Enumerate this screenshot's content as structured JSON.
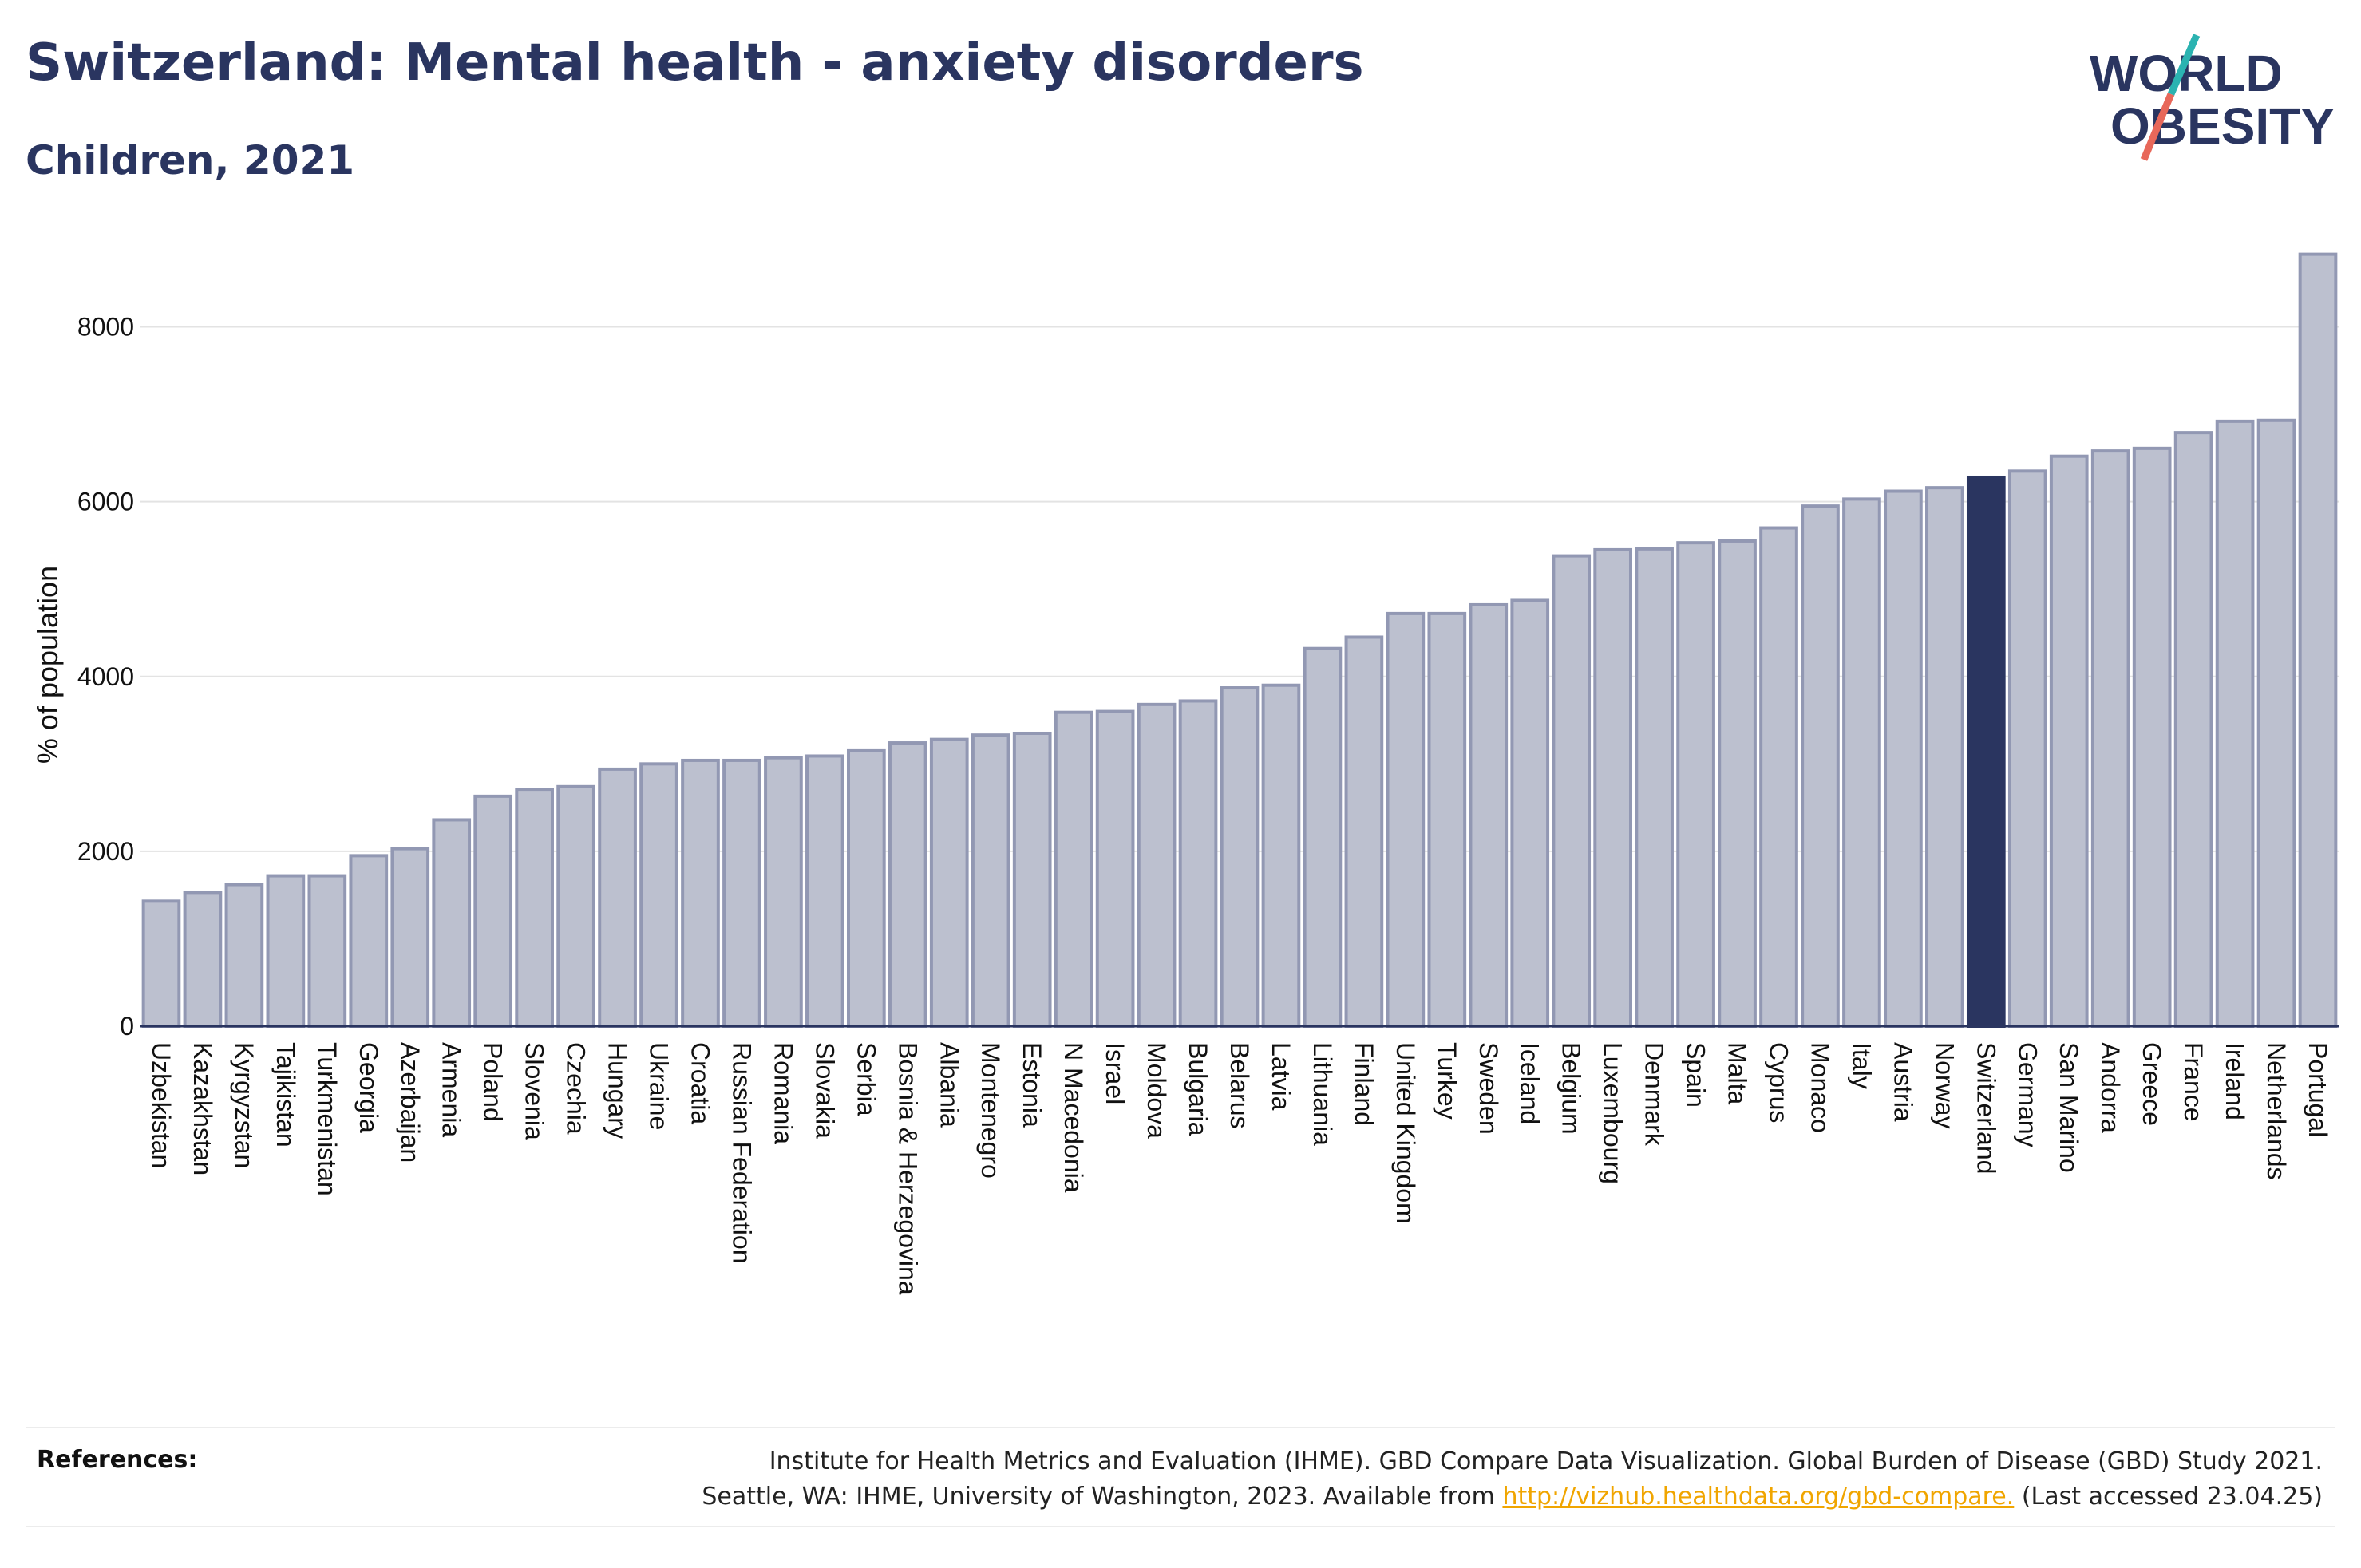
{
  "header": {
    "title": "Switzerland: Mental health - anxiety disorders",
    "subtitle": "Children, 2021"
  },
  "logo": {
    "line1": "WORLD",
    "line2": "OBESITY",
    "accent_colors": [
      "#2bb3b1",
      "#e8685a"
    ]
  },
  "colors": {
    "bar": "#bcc0cf",
    "bar_edge": "#9298b3",
    "highlight": "#2a3560",
    "text": "#2a3560"
  },
  "references": {
    "label": "References:",
    "line1": "Institute for Health Metrics and Evaluation (IHME). GBD Compare Data Visualization. Global Burden of Disease (GBD) Study 2021.",
    "line2_prefix": "Seattle, WA: IHME, University of Washington, 2023. Available from ",
    "link": "http://vizhub.healthdata.org/gbd-compare.",
    "line2_suffix": " (Last accessed 23.04.25)"
  },
  "chart_data": {
    "type": "bar",
    "title": "Switzerland: Mental health - anxiety disorders",
    "subtitle": "Children, 2021",
    "ylabel": "% of population",
    "xlabel": "",
    "ylim": [
      0,
      9000
    ],
    "yticks": [
      0,
      2000,
      4000,
      6000,
      8000
    ],
    "grid": true,
    "highlight": "Switzerland",
    "categories": [
      "Uzbekistan",
      "Kazakhstan",
      "Kyrgyzstan",
      "Tajikistan",
      "Turkmenistan",
      "Georgia",
      "Azerbaijan",
      "Armenia",
      "Poland",
      "Slovenia",
      "Czechia",
      "Hungary",
      "Ukraine",
      "Croatia",
      "Russian Federation",
      "Romania",
      "Slovakia",
      "Serbia",
      "Bosnia & Herzegovina",
      "Albania",
      "Montenegro",
      "Estonia",
      "N Macedonia",
      "Israel",
      "Moldova",
      "Bulgaria",
      "Belarus",
      "Latvia",
      "Lithuania",
      "Finland",
      "United Kingdom",
      "Turkey",
      "Sweden",
      "Iceland",
      "Belgium",
      "Luxembourg",
      "Denmark",
      "Spain",
      "Malta",
      "Cyprus",
      "Monaco",
      "Italy",
      "Austria",
      "Norway",
      "Switzerland",
      "Germany",
      "San Marino",
      "Andorra",
      "Greece",
      "France",
      "Ireland",
      "Netherlands",
      "Portugal"
    ],
    "values": [
      1430,
      1530,
      1620,
      1720,
      1720,
      1950,
      2030,
      2360,
      2630,
      2710,
      2740,
      2940,
      3000,
      3040,
      3040,
      3070,
      3090,
      3150,
      3240,
      3280,
      3330,
      3350,
      3590,
      3600,
      3680,
      3720,
      3870,
      3900,
      4320,
      4450,
      4720,
      4720,
      4820,
      4870,
      5380,
      5450,
      5460,
      5530,
      5550,
      5700,
      5950,
      6030,
      6120,
      6160,
      6280,
      6350,
      6520,
      6580,
      6610,
      6790,
      6920,
      6930,
      8830
    ]
  }
}
